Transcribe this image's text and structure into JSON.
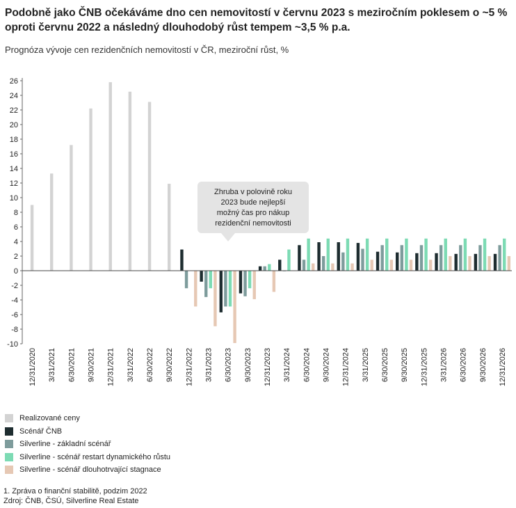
{
  "title": "Podobně jako ČNB očekáváme dno cen nemovitostí v červnu 2023 s meziročním poklesem o ~5 % oproti červnu 2022 a následný dlouhodobý růst tempem ~3,5 % p.a.",
  "subtitle": "Prognóza vývoje cen rezidenčních nemovitostí v ČR, meziroční růst, %",
  "callout": [
    "Zhruba v polovině roku",
    "2023 bude nejlepší",
    "možný čas pro nákup",
    "rezidenční nemovitosti"
  ],
  "chart_data": {
    "type": "bar",
    "ylim": [
      -10,
      26
    ],
    "yticks": [
      -10,
      -8,
      -6,
      -4,
      -2,
      0,
      2,
      4,
      6,
      8,
      10,
      12,
      14,
      16,
      18,
      20,
      22,
      24,
      26
    ],
    "grid": false,
    "categories": [
      "12/31/2020",
      "3/31/2021",
      "6/30/2021",
      "9/30/2021",
      "12/31/2021",
      "3/31/2022",
      "6/30/2022",
      "9/30/2022",
      "12/31/2022",
      "3/31/2023",
      "6/30/2023",
      "9/30/2023",
      "12/31/2023",
      "3/31/2024",
      "6/30/2024",
      "9/30/2024",
      "12/31/2024",
      "3/31/2025",
      "6/30/2025",
      "9/30/2025",
      "12/31/2025",
      "3/31/2026",
      "6/30/2026",
      "9/30/2026",
      "12/31/2026"
    ],
    "series": [
      {
        "name": "Realizované ceny",
        "color": "#d3d3d3",
        "values": [
          9,
          13.3,
          17.2,
          22.2,
          25.8,
          24.5,
          23.1,
          11.9,
          null,
          null,
          null,
          null,
          null,
          null,
          null,
          null,
          null,
          null,
          null,
          null,
          null,
          null,
          null,
          null,
          null
        ]
      },
      {
        "name": "Scénář ČNB",
        "color": "#1e2d30",
        "values": [
          null,
          null,
          null,
          null,
          null,
          null,
          null,
          null,
          2.9,
          -1.5,
          -5.7,
          -3.1,
          0.6,
          1.5,
          3.5,
          3.9,
          3.9,
          3.8,
          2.6,
          2.5,
          2.4,
          2.4,
          2.3,
          2.3,
          2.3
        ]
      },
      {
        "name": "Silverline - základní scénář",
        "color": "#7e9c9c",
        "values": [
          null,
          null,
          null,
          null,
          null,
          null,
          null,
          null,
          -2.4,
          -3.6,
          -4.9,
          -3.5,
          0.6,
          0,
          1.5,
          2,
          2.5,
          3,
          3.5,
          3.5,
          3.5,
          3.5,
          3.5,
          3.5,
          3.5
        ]
      },
      {
        "name": "Silverline - scénář restart dynamického růstu",
        "color": "#7ddbb4",
        "values": [
          null,
          null,
          null,
          null,
          null,
          null,
          null,
          null,
          null,
          -2.4,
          -4.9,
          -2.4,
          0.9,
          2.9,
          4.4,
          4.4,
          4.4,
          4.4,
          4.4,
          4.4,
          4.4,
          4.4,
          4.4,
          4.4,
          4.4
        ]
      },
      {
        "name": "Silverline - scénář dlouhotrvající stagnace",
        "color": "#e6c8b4",
        "values": [
          null,
          null,
          null,
          null,
          null,
          null,
          null,
          null,
          -4.9,
          -7.6,
          -9.9,
          -3.9,
          -2.9,
          null,
          1,
          1,
          1,
          1.5,
          1.5,
          1.5,
          1.5,
          2,
          2,
          2,
          2
        ]
      }
    ]
  },
  "footnotes": [
    "1. Zpráva o finanční stabilitě, podzim 2022",
    "Zdroj: ČNB, ČSÚ, Silverline Real Estate"
  ]
}
